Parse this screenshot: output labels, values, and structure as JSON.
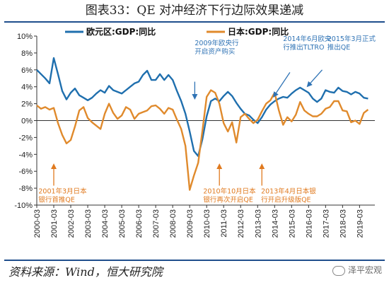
{
  "title": "图表33：QE 对冲经济下行边际效果递减",
  "source": "资料来源：Wind，恒大研究院",
  "watermark": "泽平宏观",
  "colors": {
    "euro": "#1f6fae",
    "japan": "#e08a2c",
    "annotation_euro": "#2f73b5",
    "annotation_japan": "#e07a1f",
    "axis": "#333333"
  },
  "chart_data": {
    "type": "line",
    "ylim": [
      -10,
      10
    ],
    "yticks": [
      "10%",
      "8%",
      "6%",
      "4%",
      "2%",
      "0%",
      "-2%",
      "-4%",
      "-6%",
      "-8%",
      "-10%"
    ],
    "yvalues": [
      10,
      8,
      6,
      4,
      2,
      0,
      -2,
      -4,
      -6,
      -8,
      -10
    ],
    "xlim": [
      2000.0,
      2019.9
    ],
    "xticks": [
      "2000-03",
      "2001-03",
      "2002-03",
      "2003-03",
      "2004-03",
      "2005-03",
      "2006-03",
      "2007-03",
      "2008-03",
      "2009-03",
      "2010-03",
      "2011-03",
      "2012-03",
      "2013-03",
      "2014-03",
      "2015-03",
      "2016-03",
      "2017-03",
      "2018-03",
      "2019-03"
    ],
    "legend_position": "top",
    "series": [
      {
        "name": "欧元区:GDP:同比",
        "x": [
          2000.0,
          2000.25,
          2000.5,
          2000.75,
          2001.0,
          2001.25,
          2001.5,
          2001.75,
          2002.0,
          2002.25,
          2002.5,
          2002.75,
          2003.0,
          2003.25,
          2003.5,
          2003.75,
          2004.0,
          2004.25,
          2004.5,
          2004.75,
          2005.0,
          2005.25,
          2005.5,
          2005.75,
          2006.0,
          2006.25,
          2006.5,
          2006.75,
          2007.0,
          2007.25,
          2007.5,
          2007.75,
          2008.0,
          2008.25,
          2008.5,
          2008.75,
          2009.0,
          2009.25,
          2009.5,
          2009.75,
          2010.0,
          2010.25,
          2010.5,
          2010.75,
          2011.0,
          2011.25,
          2011.5,
          2011.75,
          2012.0,
          2012.25,
          2012.5,
          2012.75,
          2013.0,
          2013.25,
          2013.5,
          2013.75,
          2014.0,
          2014.25,
          2014.5,
          2014.75,
          2015.0,
          2015.25,
          2015.5,
          2015.75,
          2016.0,
          2016.25,
          2016.5,
          2016.75,
          2017.0,
          2017.25,
          2017.5,
          2017.75,
          2018.0,
          2018.25,
          2018.5,
          2018.75,
          2019.0,
          2019.25,
          2019.5
        ],
        "values": [
          6.0,
          5.5,
          5.0,
          4.4,
          7.4,
          5.5,
          3.5,
          2.5,
          3.3,
          3.8,
          3.0,
          2.7,
          2.4,
          2.7,
          3.2,
          3.6,
          3.3,
          4.1,
          3.6,
          3.4,
          3.2,
          3.6,
          4.0,
          4.4,
          4.6,
          5.4,
          5.9,
          4.8,
          4.8,
          5.5,
          4.8,
          5.4,
          4.8,
          3.5,
          2.3,
          0.8,
          -1.3,
          -3.6,
          -4.2,
          -2.2,
          0.5,
          2.3,
          2.6,
          2.3,
          2.9,
          3.4,
          2.9,
          2.1,
          1.4,
          0.8,
          0.6,
          0.1,
          -0.3,
          0.4,
          1.3,
          1.9,
          2.3,
          2.6,
          2.8,
          2.7,
          3.2,
          3.6,
          3.9,
          3.6,
          3.3,
          2.6,
          2.2,
          2.6,
          3.6,
          3.4,
          3.3,
          3.9,
          3.5,
          3.4,
          3.1,
          3.4,
          3.2,
          2.7,
          2.6
        ]
      },
      {
        "name": "日本:GDP:同比",
        "x": [
          2000.0,
          2000.25,
          2000.5,
          2000.75,
          2001.0,
          2001.25,
          2001.5,
          2001.75,
          2002.0,
          2002.25,
          2002.5,
          2002.75,
          2003.0,
          2003.25,
          2003.5,
          2003.75,
          2004.0,
          2004.25,
          2004.5,
          2004.75,
          2005.0,
          2005.25,
          2005.5,
          2005.75,
          2006.0,
          2006.25,
          2006.5,
          2006.75,
          2007.0,
          2007.25,
          2007.5,
          2007.75,
          2008.0,
          2008.25,
          2008.5,
          2008.75,
          2009.0,
          2009.25,
          2009.5,
          2009.75,
          2010.0,
          2010.25,
          2010.5,
          2010.75,
          2011.0,
          2011.25,
          2011.5,
          2011.75,
          2012.0,
          2012.25,
          2012.5,
          2012.75,
          2013.0,
          2013.25,
          2013.5,
          2013.75,
          2014.0,
          2014.25,
          2014.5,
          2014.75,
          2015.0,
          2015.25,
          2015.5,
          2015.75,
          2016.0,
          2016.25,
          2016.5,
          2016.75,
          2017.0,
          2017.25,
          2017.5,
          2017.75,
          2018.0,
          2018.25,
          2018.5,
          2018.75,
          2019.0,
          2019.25,
          2019.5
        ],
        "values": [
          1.8,
          1.4,
          1.6,
          1.3,
          1.5,
          -0.3,
          -1.7,
          -2.7,
          -2.3,
          -0.7,
          1.2,
          1.6,
          0.3,
          -0.2,
          -0.6,
          -1.0,
          0.8,
          2.0,
          0.9,
          0.2,
          0.6,
          1.6,
          1.3,
          0.2,
          0.8,
          1.0,
          1.2,
          1.7,
          1.8,
          1.4,
          0.8,
          1.5,
          1.3,
          0.1,
          -1.0,
          -3.0,
          -8.2,
          -6.5,
          -5.0,
          -1.2,
          2.8,
          3.6,
          3.3,
          2.0,
          -0.3,
          -1.3,
          -0.2,
          -2.6,
          0.4,
          0.8,
          0.2,
          -0.3,
          0.1,
          1.1,
          2.0,
          2.4,
          3.3,
          1.2,
          -0.5,
          0.4,
          -0.1,
          0.7,
          2.2,
          1.2,
          0.8,
          0.5,
          0.5,
          0.8,
          1.4,
          1.6,
          2.3,
          2.3,
          1.2,
          1.1,
          -0.2,
          0.0,
          -0.4,
          0.9,
          1.3
        ]
      }
    ],
    "annotations": [
      {
        "series": 0,
        "lines": [
          "2009年欧央行",
          "开启资产购买"
        ],
        "label_x": 2009.3,
        "label_y": 8.9,
        "arrow_from": [
          2009.3,
          4.6
        ],
        "arrow_to": [
          2009.3,
          2.8
        ]
      },
      {
        "series": 0,
        "lines": [
          "2014年6月欧央",
          "行推出TLTRO"
        ],
        "label_x": 2014.5,
        "label_y": 9.4,
        "arrow_from": [
          2014.9,
          5.7
        ],
        "arrow_to": [
          2014.0,
          3.0
        ]
      },
      {
        "series": 0,
        "lines": [
          "2015年3月正式",
          "推出QE"
        ],
        "label_x": 2017.1,
        "label_y": 9.4,
        "arrow_from": [
          2016.8,
          6.0
        ],
        "arrow_to": [
          2016.0,
          4.2
        ]
      },
      {
        "series": 1,
        "lines": [
          "2001年3月日本",
          "银行首推QE"
        ],
        "label_x": 2000.1,
        "label_y": -8.6,
        "arrow_from": [
          2001.0,
          -7.7
        ],
        "arrow_to": [
          2001.0,
          -5.4
        ]
      },
      {
        "series": 1,
        "lines": [
          "2010年10月日本",
          "银行再次开启QE"
        ],
        "label_x": 2009.8,
        "label_y": -8.6,
        "arrow_from": [
          2010.75,
          -7.7
        ],
        "arrow_to": [
          2010.75,
          -5.4
        ]
      },
      {
        "series": 1,
        "lines": [
          "2013年4月日本银",
          "行开启升级版QE"
        ],
        "label_x": 2013.2,
        "label_y": -8.6,
        "arrow_from": [
          2013.25,
          -7.7
        ],
        "arrow_to": [
          2013.25,
          -5.4
        ]
      }
    ]
  }
}
